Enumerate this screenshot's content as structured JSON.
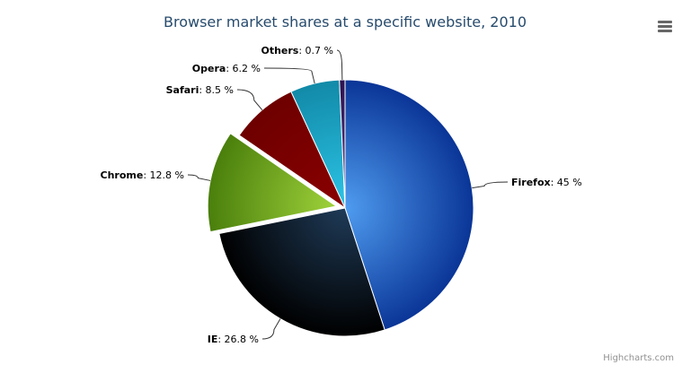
{
  "chart_data": {
    "type": "pie",
    "title": "Browser market shares at a specific website, 2010",
    "value_suffix": "%",
    "slices": [
      {
        "name": "Firefox",
        "value": 45,
        "color": "#2f7ed8"
      },
      {
        "name": "IE",
        "value": 26.8,
        "color": "#0d233a"
      },
      {
        "name": "Chrome",
        "value": 12.8,
        "color": "#8bbc21",
        "sliced": true
      },
      {
        "name": "Safari",
        "value": 8.5,
        "color": "#910000"
      },
      {
        "name": "Opera",
        "value": 6.2,
        "color": "#1aadce"
      },
      {
        "name": "Others",
        "value": 0.7,
        "color": "#492970"
      }
    ]
  },
  "credits": "Highcharts.com",
  "menu_icon": "hamburger-menu-icon"
}
